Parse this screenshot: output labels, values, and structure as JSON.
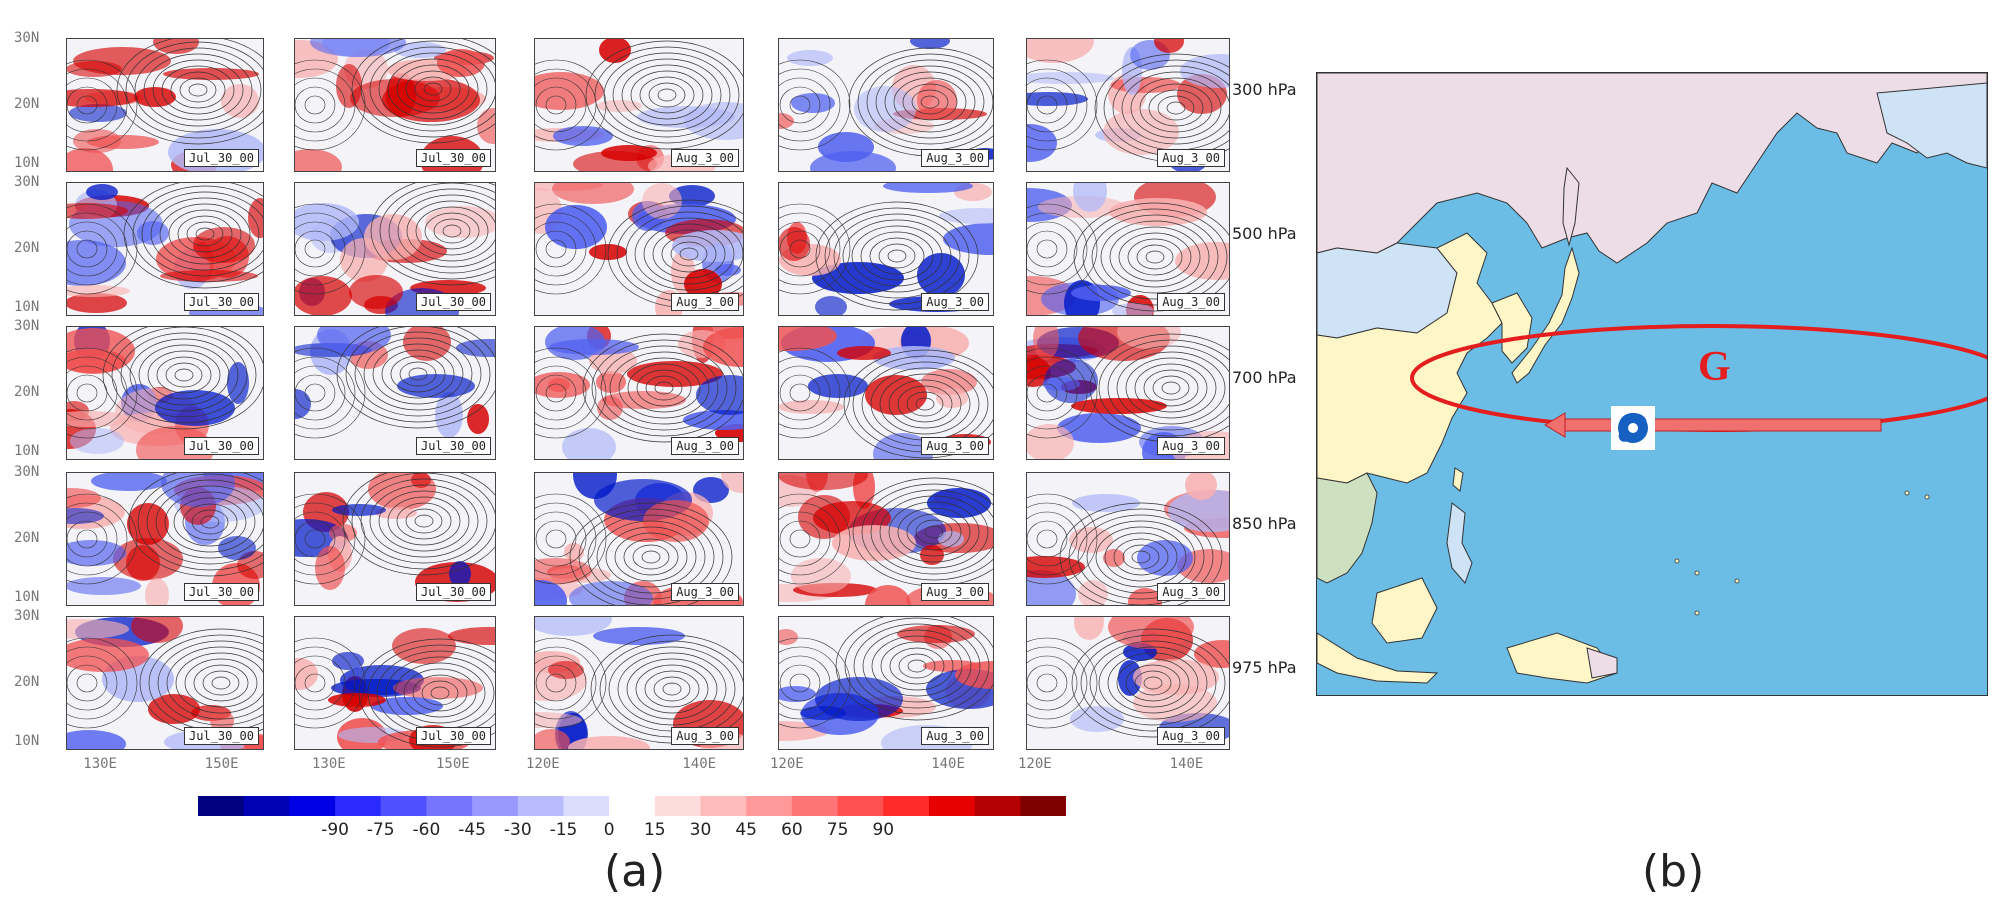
{
  "panel_a": {
    "figure_label": "(a)",
    "levels": [
      "300 hPa",
      "500 hPa",
      "700 hPa",
      "850 hPa",
      "975 hPa"
    ],
    "columns": [
      {
        "timestamp": "Jul_30_00",
        "lon_ticks": [
          "130E",
          "150E"
        ]
      },
      {
        "timestamp": "Jul_30_00",
        "lon_ticks": [
          "130E",
          "150E"
        ]
      },
      {
        "timestamp": "Aug_3_00",
        "lon_ticks": [
          "120E",
          "140E"
        ]
      },
      {
        "timestamp": "Aug_3_00",
        "lon_ticks": [
          "120E",
          "140E"
        ]
      },
      {
        "timestamp": "Aug_3_00",
        "lon_ticks": [
          "120E",
          "140E"
        ]
      }
    ],
    "lat_ticks": [
      "30N",
      "20N",
      "10N"
    ],
    "colorbar": {
      "ticks": [
        "-90",
        "-75",
        "-60",
        "-45",
        "-30",
        "-15",
        "0",
        "15",
        "30",
        "45",
        "60",
        "75",
        "90"
      ],
      "colors": [
        "#000080",
        "#0000b4",
        "#0000e6",
        "#2a2aff",
        "#5050ff",
        "#7474ff",
        "#9898ff",
        "#babaff",
        "#dcdcff",
        "#ffffff",
        "#ffdcdc",
        "#ffbaba",
        "#ff9898",
        "#ff7474",
        "#ff5050",
        "#ff2a2a",
        "#e60000",
        "#b40000",
        "#800000"
      ]
    }
  },
  "panel_b": {
    "figure_label": "(b)",
    "region_label": "G",
    "colors": {
      "ocean": "#6cbde6",
      "land_north": "#ecdde6",
      "land_china": "#fff6c8",
      "land_other": "#cfe3f7",
      "land_se_asia": "#cde0c0",
      "ellipse": "#e41e1e",
      "arrow": "#f07070",
      "typhoon_icon": "#1560c0"
    },
    "icons": [
      "typhoon-icon",
      "arrow-left-icon"
    ]
  }
}
